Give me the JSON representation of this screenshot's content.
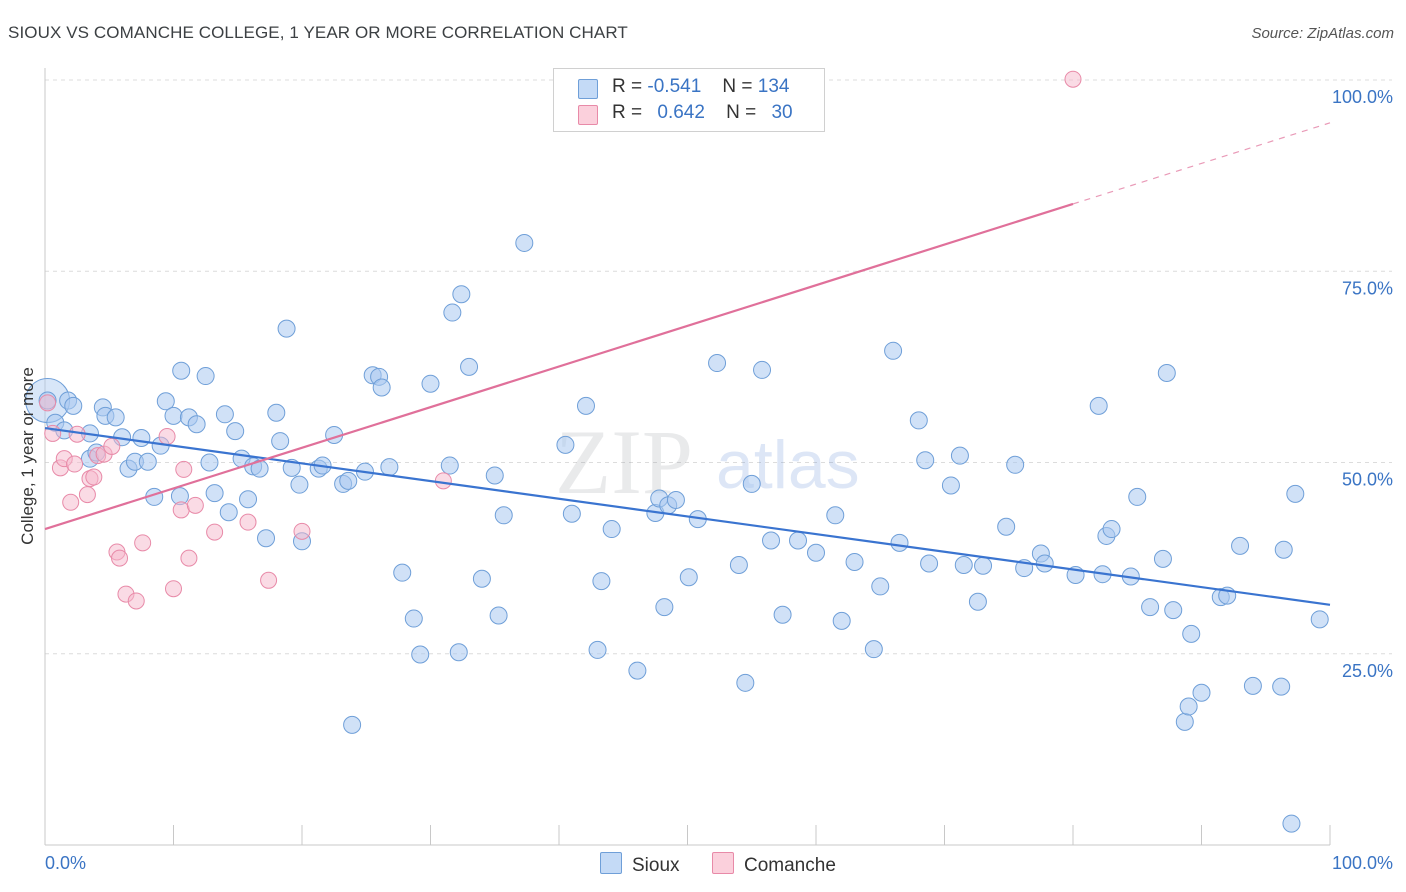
{
  "title": "SIOUX VS COMANCHE COLLEGE, 1 YEAR OR MORE CORRELATION CHART",
  "source": "Source: ZipAtlas.com",
  "watermark": {
    "zip": "ZIP",
    "atlas": "atlas"
  },
  "legend": {
    "r_label": "R =",
    "n_label": "N =",
    "rows": [
      {
        "name": "Sioux",
        "r": "-0.541",
        "n": "134",
        "color": "#a9c8f0"
      },
      {
        "name": "Comanche",
        "r": "0.642",
        "n": "30",
        "color": "#f5b8cb"
      }
    ]
  },
  "bottom_legend": {
    "sioux": "Sioux",
    "comanche": "Comanche"
  },
  "chart_data": {
    "type": "scatter",
    "xlabel": "",
    "ylabel": "College, 1 year or more",
    "xlim": [
      0,
      100
    ],
    "ylim": [
      0,
      100
    ],
    "x_tick_labels": [
      "0.0%",
      "100.0%"
    ],
    "y_tick_labels": [
      {
        "value": 25,
        "label": "25.0%"
      },
      {
        "value": 50,
        "label": "50.0%"
      },
      {
        "value": 75,
        "label": "75.0%"
      },
      {
        "value": 100,
        "label": "100.0%"
      }
    ],
    "grid": true,
    "legend_position": "top-center",
    "colors": {
      "sioux_fill": "#a9c8f0",
      "sioux_stroke": "#6f9fd8",
      "sioux_line": "#3a74d0",
      "comanche_fill": "#f5b8cb",
      "comanche_stroke": "#e88aa8",
      "comanche_line": "#e0709a"
    },
    "series": [
      {
        "name": "Sioux",
        "trend": {
          "x": [
            0,
            100
          ],
          "y": [
            54.5,
            31.4
          ]
        },
        "points": [
          [
            0.2,
            58.1
          ],
          [
            0.8,
            55.2
          ],
          [
            1.5,
            54.2
          ],
          [
            1.8,
            58.1
          ],
          [
            2.2,
            57.4
          ],
          [
            3.5,
            50.5
          ],
          [
            3.5,
            53.8
          ],
          [
            4.0,
            51.3
          ],
          [
            4.5,
            57.2
          ],
          [
            4.7,
            56.1
          ],
          [
            5.5,
            55.9
          ],
          [
            6.0,
            53.3
          ],
          [
            6.5,
            49.2
          ],
          [
            7.0,
            50.1
          ],
          [
            7.5,
            53.2
          ],
          [
            8.0,
            50.1
          ],
          [
            8.5,
            45.5
          ],
          [
            9.0,
            52.2
          ],
          [
            9.4,
            58.0
          ],
          [
            10.0,
            56.1
          ],
          [
            10.5,
            45.6
          ],
          [
            10.6,
            62.0
          ],
          [
            11.2,
            55.9
          ],
          [
            11.8,
            55.0
          ],
          [
            12.5,
            61.3
          ],
          [
            12.8,
            50.0
          ],
          [
            13.2,
            46.0
          ],
          [
            14.0,
            56.3
          ],
          [
            14.3,
            43.5
          ],
          [
            14.8,
            54.1
          ],
          [
            15.3,
            50.5
          ],
          [
            15.8,
            45.2
          ],
          [
            16.2,
            49.5
          ],
          [
            16.7,
            49.2
          ],
          [
            17.2,
            40.1
          ],
          [
            18.0,
            56.5
          ],
          [
            18.3,
            52.8
          ],
          [
            18.8,
            67.5
          ],
          [
            19.2,
            49.3
          ],
          [
            19.8,
            47.1
          ],
          [
            20.0,
            39.7
          ],
          [
            21.3,
            49.2
          ],
          [
            21.6,
            49.6
          ],
          [
            22.5,
            53.6
          ],
          [
            23.2,
            47.2
          ],
          [
            23.6,
            47.6
          ],
          [
            23.9,
            15.7
          ],
          [
            24.9,
            48.8
          ],
          [
            25.5,
            61.4
          ],
          [
            26.0,
            61.2
          ],
          [
            26.2,
            59.8
          ],
          [
            26.8,
            49.4
          ],
          [
            27.8,
            35.6
          ],
          [
            28.7,
            29.6
          ],
          [
            29.2,
            24.9
          ],
          [
            30.0,
            60.3
          ],
          [
            31.5,
            49.6
          ],
          [
            31.7,
            69.6
          ],
          [
            32.2,
            25.2
          ],
          [
            32.4,
            72.0
          ],
          [
            33.0,
            62.5
          ],
          [
            34.0,
            34.8
          ],
          [
            35.0,
            48.3
          ],
          [
            35.3,
            30.0
          ],
          [
            35.7,
            43.1
          ],
          [
            37.3,
            78.7
          ],
          [
            40.5,
            52.3
          ],
          [
            41.0,
            43.3
          ],
          [
            42.1,
            57.4
          ],
          [
            43.0,
            25.5
          ],
          [
            43.3,
            34.5
          ],
          [
            44.1,
            41.3
          ],
          [
            46.1,
            22.8
          ],
          [
            47.5,
            43.4
          ],
          [
            47.8,
            45.3
          ],
          [
            48.2,
            31.1
          ],
          [
            48.5,
            44.4
          ],
          [
            49.1,
            45.1
          ],
          [
            50.1,
            35.0
          ],
          [
            50.8,
            42.6
          ],
          [
            52.3,
            63.0
          ],
          [
            54.0,
            36.6
          ],
          [
            54.5,
            21.2
          ],
          [
            55.0,
            47.2
          ],
          [
            55.8,
            62.1
          ],
          [
            56.5,
            39.8
          ],
          [
            57.4,
            30.1
          ],
          [
            58.6,
            39.8
          ],
          [
            60.0,
            38.2
          ],
          [
            61.5,
            43.1
          ],
          [
            62.0,
            29.3
          ],
          [
            63.0,
            37.0
          ],
          [
            64.5,
            25.6
          ],
          [
            65.0,
            33.8
          ],
          [
            66.0,
            64.6
          ],
          [
            66.5,
            39.5
          ],
          [
            68.0,
            55.5
          ],
          [
            68.5,
            50.3
          ],
          [
            68.8,
            36.8
          ],
          [
            70.5,
            47.0
          ],
          [
            71.2,
            50.9
          ],
          [
            71.5,
            36.6
          ],
          [
            72.6,
            31.8
          ],
          [
            73.0,
            36.5
          ],
          [
            74.8,
            41.6
          ],
          [
            75.5,
            49.7
          ],
          [
            76.2,
            36.2
          ],
          [
            77.5,
            38.1
          ],
          [
            77.8,
            36.8
          ],
          [
            80.2,
            35.3
          ],
          [
            82.0,
            57.4
          ],
          [
            82.3,
            35.4
          ],
          [
            82.6,
            40.4
          ],
          [
            83.0,
            41.3
          ],
          [
            84.5,
            35.1
          ],
          [
            85.0,
            45.5
          ],
          [
            86.0,
            31.1
          ],
          [
            87.0,
            37.4
          ],
          [
            87.3,
            61.7
          ],
          [
            87.8,
            30.7
          ],
          [
            88.7,
            16.1
          ],
          [
            89.0,
            18.1
          ],
          [
            89.2,
            27.6
          ],
          [
            90.0,
            19.9
          ],
          [
            91.5,
            32.4
          ],
          [
            92.0,
            32.6
          ],
          [
            93.0,
            39.1
          ],
          [
            94.0,
            20.8
          ],
          [
            96.2,
            20.7
          ],
          [
            96.4,
            38.6
          ],
          [
            97.0,
            2.8
          ],
          [
            97.3,
            45.9
          ],
          [
            99.2,
            29.5
          ]
        ]
      },
      {
        "name": "Comanche",
        "trend": {
          "x": [
            0,
            80
          ],
          "y": [
            41.3,
            83.8
          ],
          "dash_to": [
            100,
            94.4
          ]
        },
        "points": [
          [
            0.2,
            57.8
          ],
          [
            0.6,
            53.8
          ],
          [
            1.2,
            49.3
          ],
          [
            1.5,
            50.5
          ],
          [
            2.0,
            44.8
          ],
          [
            2.3,
            49.8
          ],
          [
            2.5,
            53.7
          ],
          [
            3.3,
            45.8
          ],
          [
            3.5,
            47.9
          ],
          [
            3.8,
            48.1
          ],
          [
            4.1,
            50.9
          ],
          [
            4.6,
            51.1
          ],
          [
            5.2,
            52.1
          ],
          [
            5.6,
            38.3
          ],
          [
            5.8,
            37.5
          ],
          [
            6.3,
            32.8
          ],
          [
            7.1,
            31.9
          ],
          [
            7.6,
            39.5
          ],
          [
            9.5,
            53.4
          ],
          [
            10.0,
            33.5
          ],
          [
            10.6,
            43.8
          ],
          [
            10.8,
            49.1
          ],
          [
            11.2,
            37.5
          ],
          [
            11.7,
            44.4
          ],
          [
            13.2,
            40.9
          ],
          [
            15.8,
            42.2
          ],
          [
            17.4,
            34.6
          ],
          [
            20.0,
            41.0
          ],
          [
            31.0,
            47.6
          ],
          [
            80.0,
            100.1
          ]
        ]
      }
    ]
  }
}
